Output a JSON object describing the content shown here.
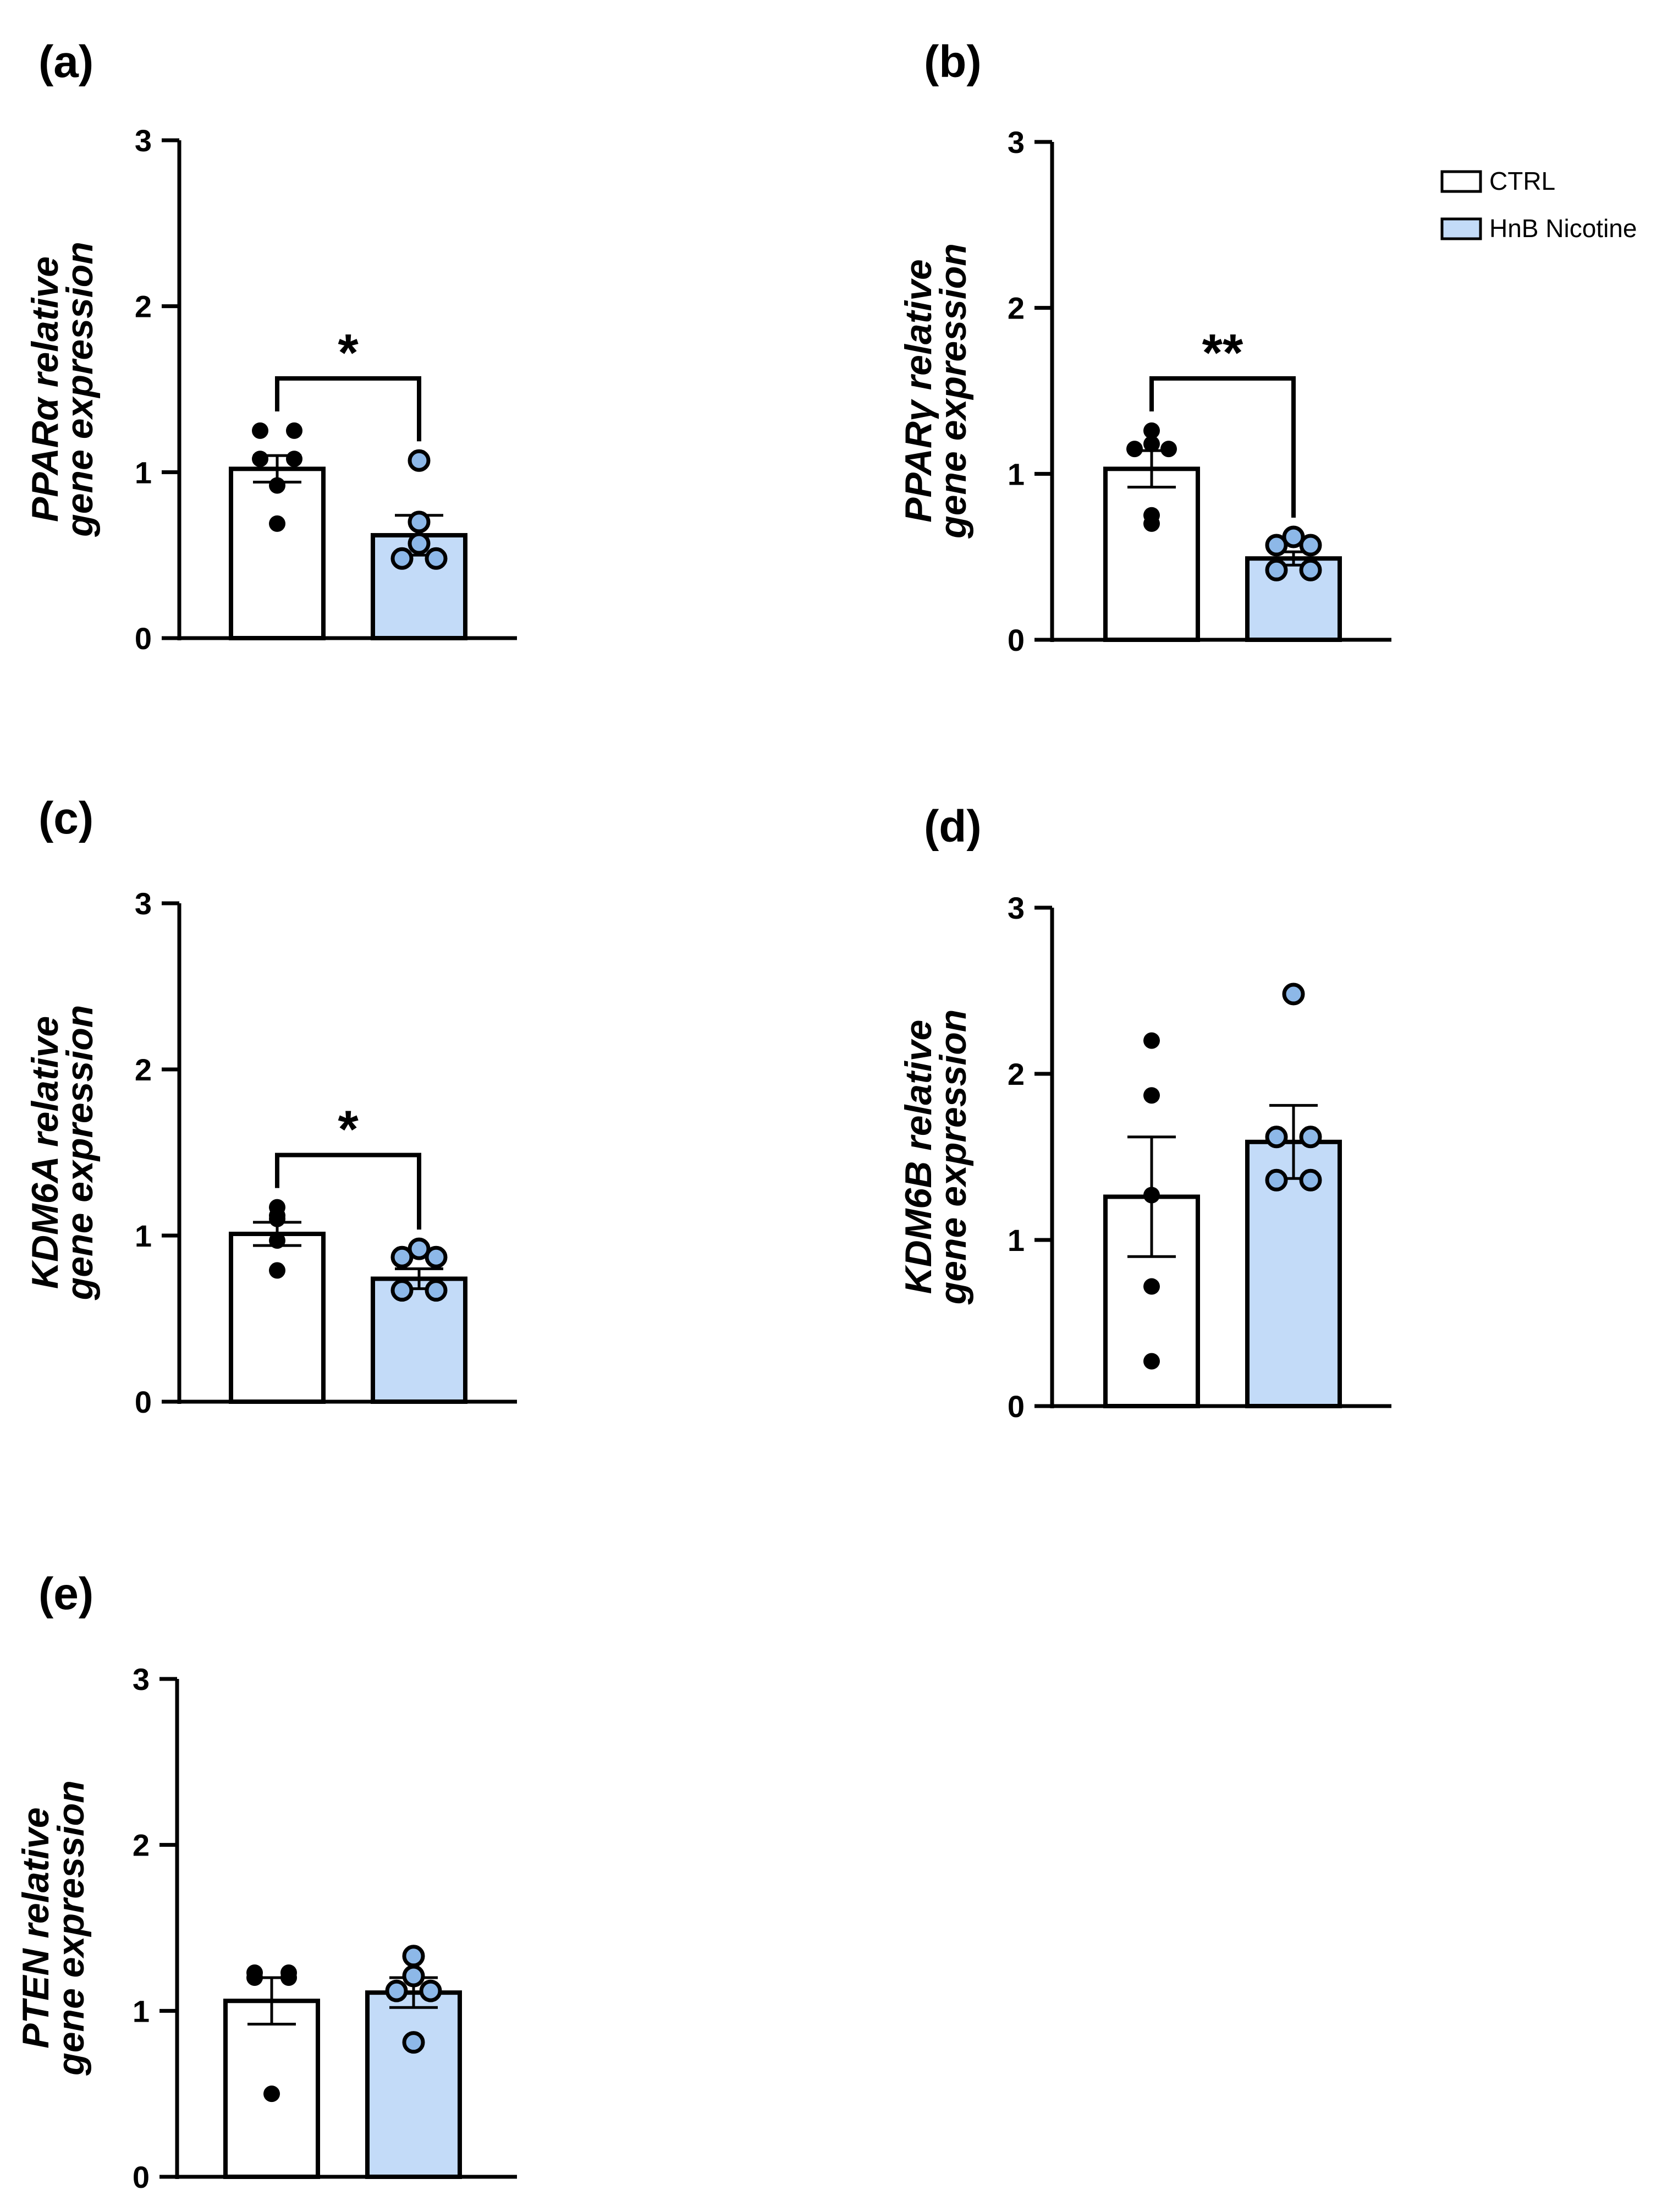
{
  "figure": {
    "colors": {
      "ctrl_fill": "#ffffff",
      "hnb_fill": "#c3dbf8",
      "line": "#000000",
      "ctrl_dot": "#000000",
      "hnb_dot": "#8db8e8"
    },
    "legend": {
      "position": "top-right",
      "entries": [
        "CTRL",
        "HnB Nicotine"
      ]
    }
  },
  "chart_data": [
    {
      "type": "bar",
      "panel": "(a)",
      "ylabel_italic": "PPARα relative",
      "ylabel_line2": "gene expression",
      "ylim": [
        0,
        3
      ],
      "yticks": [
        "0",
        "1",
        "2",
        "3"
      ],
      "categories": [
        "CTRL",
        "HnB Nicotine"
      ],
      "series": [
        {
          "name": "CTRL",
          "mean": 1.02,
          "sem": 0.08,
          "points": [
            1.25,
            1.25,
            1.08,
            1.08,
            0.92,
            0.69
          ]
        },
        {
          "name": "HnB Nicotine",
          "mean": 0.62,
          "sem": 0.12,
          "points": [
            1.07,
            0.7,
            0.57,
            0.48,
            0.48
          ]
        }
      ],
      "significance": "*"
    },
    {
      "type": "bar",
      "panel": "(b)",
      "ylabel_italic": "PPARγ relative",
      "ylabel_line2": "gene expression",
      "ylim": [
        0,
        3
      ],
      "yticks": [
        "0",
        "1",
        "2",
        "3"
      ],
      "categories": [
        "CTRL",
        "HnB Nicotine"
      ],
      "series": [
        {
          "name": "CTRL",
          "mean": 1.03,
          "sem": 0.11,
          "points": [
            1.26,
            1.18,
            1.15,
            1.15,
            0.75,
            0.7
          ]
        },
        {
          "name": "HnB Nicotine",
          "mean": 0.49,
          "sem": 0.04,
          "points": [
            0.62,
            0.57,
            0.57,
            0.42,
            0.42
          ]
        }
      ],
      "significance": "**"
    },
    {
      "type": "bar",
      "panel": "(c)",
      "ylabel_italic": "KDM6A relative",
      "ylabel_line2": "gene expression",
      "ylim": [
        0,
        3
      ],
      "yticks": [
        "0",
        "1",
        "2",
        "3"
      ],
      "categories": [
        "CTRL",
        "HnB Nicotine"
      ],
      "series": [
        {
          "name": "CTRL",
          "mean": 1.01,
          "sem": 0.07,
          "points": [
            1.17,
            1.12,
            1.1,
            0.97,
            0.79
          ]
        },
        {
          "name": "HnB Nicotine",
          "mean": 0.74,
          "sem": 0.06,
          "points": [
            0.92,
            0.87,
            0.87,
            0.67,
            0.67
          ]
        }
      ],
      "significance": "*"
    },
    {
      "type": "bar",
      "panel": "(d)",
      "ylabel_italic": "KDM6B relative",
      "ylabel_line2": "gene expression",
      "ylim": [
        0,
        3
      ],
      "yticks": [
        "0",
        "1",
        "2",
        "3"
      ],
      "categories": [
        "CTRL",
        "HnB Nicotine"
      ],
      "series": [
        {
          "name": "CTRL",
          "mean": 1.26,
          "sem": 0.36,
          "points": [
            2.2,
            1.87,
            1.27,
            0.72,
            0.27
          ]
        },
        {
          "name": "HnB Nicotine",
          "mean": 1.59,
          "sem": 0.22,
          "points": [
            2.48,
            1.62,
            1.62,
            1.36,
            1.36
          ]
        }
      ],
      "significance": ""
    },
    {
      "type": "bar",
      "panel": "(e)",
      "ylabel_italic": "PTEN relative",
      "ylabel_line2": "gene expression",
      "ylim": [
        0,
        3
      ],
      "yticks": [
        "0",
        "1",
        "2",
        "3"
      ],
      "categories": [
        "CTRL",
        "HnB Nicotine"
      ],
      "series": [
        {
          "name": "CTRL",
          "mean": 1.06,
          "sem": 0.14,
          "points": [
            1.23,
            1.23,
            1.2,
            1.2,
            0.5
          ]
        },
        {
          "name": "HnB Nicotine",
          "mean": 1.11,
          "sem": 0.09,
          "points": [
            1.33,
            1.21,
            1.12,
            1.12,
            0.81
          ]
        }
      ],
      "significance": ""
    }
  ]
}
